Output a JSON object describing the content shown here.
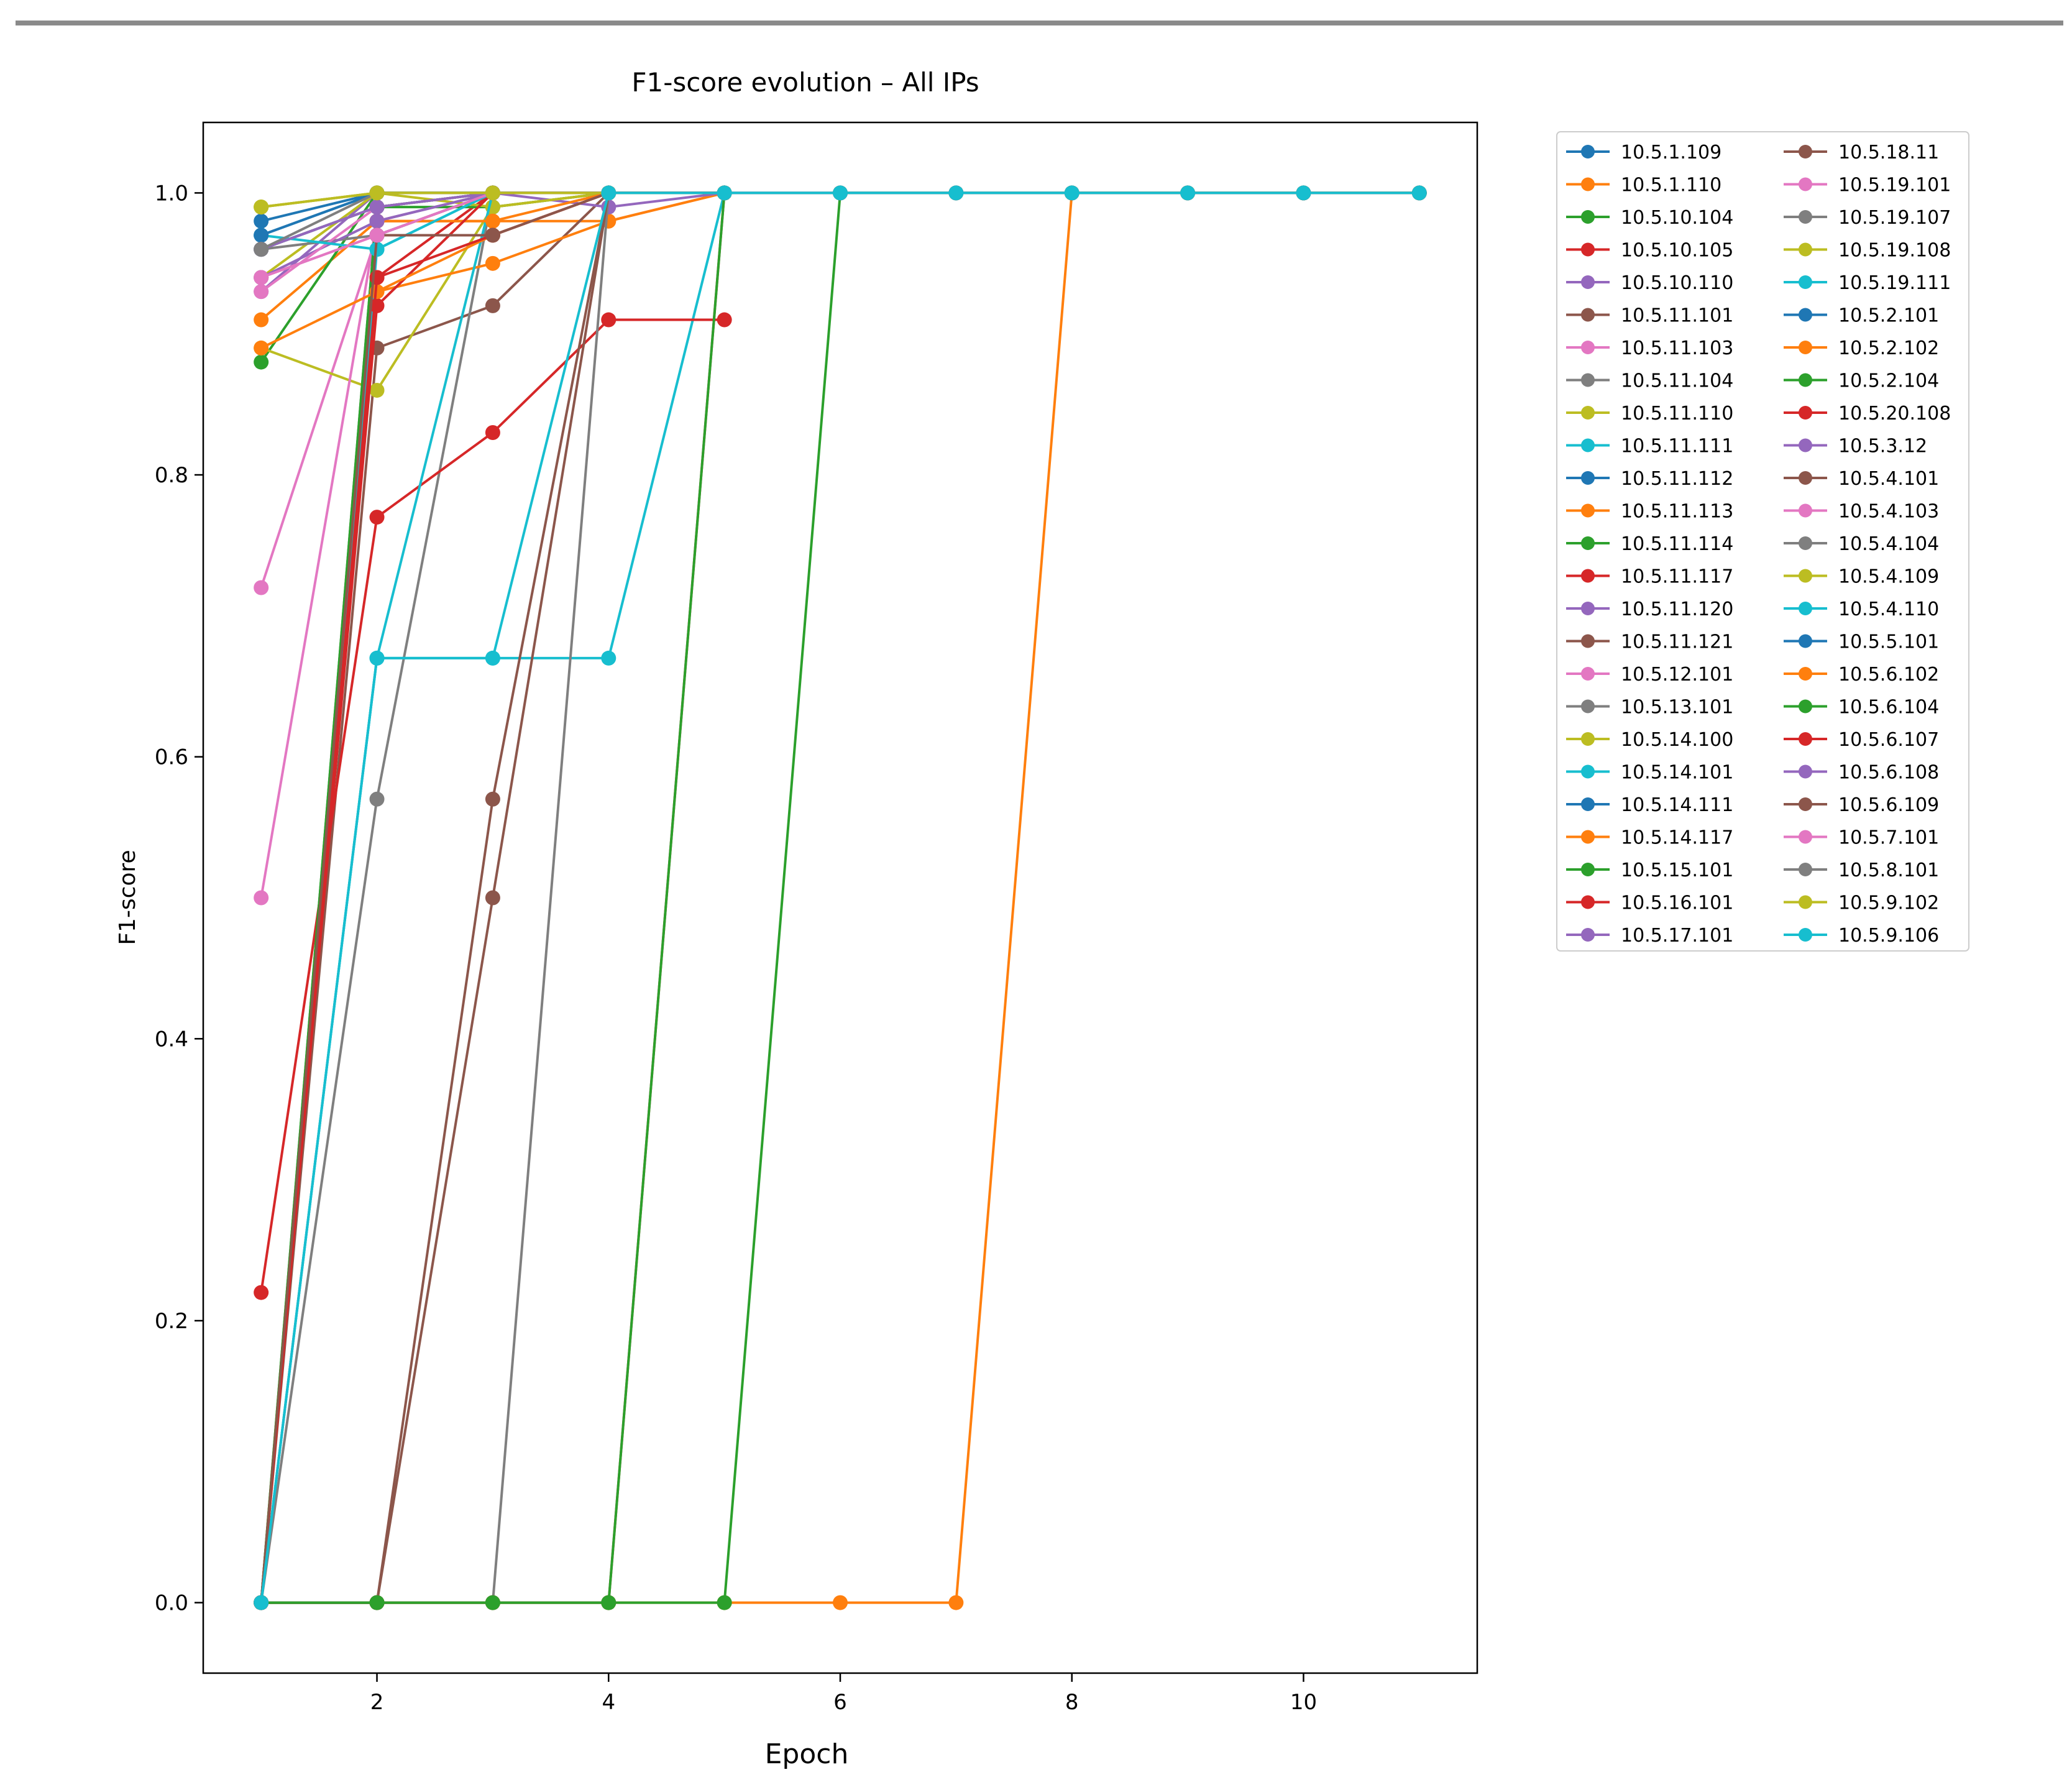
{
  "chart_data": {
    "type": "line",
    "title": "F1-score evolution – All IPs",
    "xlabel": "Epoch",
    "ylabel": "F1-score",
    "xlim": [
      0.5,
      11.5
    ],
    "ylim": [
      -0.05,
      1.05
    ],
    "xticks": [
      2,
      4,
      6,
      8,
      10
    ],
    "yticks": [
      0.0,
      0.2,
      0.4,
      0.6,
      0.8,
      1.0
    ],
    "ytick_labels": [
      "0.0",
      "0.2",
      "0.4",
      "0.6",
      "0.8",
      "1.0"
    ],
    "grid": false,
    "legend_position": "outside-right",
    "series": [
      {
        "name": "10.5.1.109",
        "color": "#1f77b4",
        "x": [
          1,
          2,
          3,
          4,
          5,
          6,
          7,
          8,
          9,
          10,
          11
        ],
        "y": [
          0.96,
          0.99,
          1,
          1,
          1,
          1,
          1,
          1,
          1,
          1,
          1
        ]
      },
      {
        "name": "10.5.1.110",
        "color": "#ff7f0e",
        "x": [
          1,
          2,
          3,
          4,
          5
        ],
        "y": [
          0.91,
          0.98,
          0.98,
          0.98,
          1
        ]
      },
      {
        "name": "10.5.10.104",
        "color": "#2ca02c",
        "x": [
          1,
          2,
          3,
          4,
          5
        ],
        "y": [
          0.88,
          1,
          1,
          1,
          1
        ]
      },
      {
        "name": "10.5.10.105",
        "color": "#d62728",
        "x": [
          1,
          2,
          3,
          4,
          5
        ],
        "y": [
          0,
          0.94,
          1,
          1,
          1
        ]
      },
      {
        "name": "10.5.10.110",
        "color": "#9467bd",
        "x": [
          1,
          2,
          3,
          4,
          5
        ],
        "y": [
          0.93,
          1,
          1,
          1,
          1
        ]
      },
      {
        "name": "10.5.11.101",
        "color": "#8c564b",
        "x": [
          1,
          2,
          3,
          4,
          5
        ],
        "y": [
          0,
          0.89,
          0.92,
          1,
          1
        ]
      },
      {
        "name": "10.5.11.103",
        "color": "#e377c2",
        "x": [
          1,
          2,
          3,
          4,
          5
        ],
        "y": [
          0.72,
          0.97,
          1,
          1,
          1
        ]
      },
      {
        "name": "10.5.11.104",
        "color": "#7f7f7f",
        "x": [
          1,
          2,
          3,
          4,
          5
        ],
        "y": [
          0,
          0.57,
          1,
          1,
          1
        ]
      },
      {
        "name": "10.5.11.110",
        "color": "#bcbd22",
        "x": [
          1,
          2,
          3,
          4,
          5
        ],
        "y": [
          0.89,
          0.86,
          0.99,
          1,
          1
        ]
      },
      {
        "name": "10.5.11.111",
        "color": "#17becf",
        "x": [
          1,
          2,
          3,
          4,
          5
        ],
        "y": [
          0,
          0.67,
          0.67,
          0.67,
          1
        ]
      },
      {
        "name": "10.5.11.112",
        "color": "#1f77b4",
        "x": [
          1,
          2,
          3,
          4,
          5
        ],
        "y": [
          0.97,
          1,
          1,
          1,
          1
        ]
      },
      {
        "name": "10.5.11.113",
        "color": "#ff7f0e",
        "x": [
          1,
          2,
          3,
          4,
          5
        ],
        "y": [
          0,
          0.93,
          0.95,
          0.98,
          1
        ]
      },
      {
        "name": "10.5.11.114",
        "color": "#2ca02c",
        "x": [
          1,
          2,
          3,
          4,
          5
        ],
        "y": [
          0,
          0.99,
          0.99,
          1,
          1
        ]
      },
      {
        "name": "10.5.11.117",
        "color": "#d62728",
        "x": [
          1,
          2,
          3,
          4,
          5
        ],
        "y": [
          0.22,
          0.77,
          0.83,
          0.91,
          0.91
        ]
      },
      {
        "name": "10.5.11.120",
        "color": "#9467bd",
        "x": [
          1,
          2,
          3,
          4,
          5
        ],
        "y": [
          0,
          0.97,
          1,
          0.99,
          1
        ]
      },
      {
        "name": "10.5.11.121",
        "color": "#8c564b",
        "x": [
          1,
          2,
          3,
          4,
          5
        ],
        "y": [
          0,
          0.97,
          0.97,
          1,
          1
        ]
      },
      {
        "name": "10.5.12.101",
        "color": "#e377c2",
        "x": [
          1,
          2,
          3,
          4,
          5
        ],
        "y": [
          0.5,
          0.98,
          1,
          1,
          1
        ]
      },
      {
        "name": "10.5.13.101",
        "color": "#7f7f7f",
        "x": [
          1,
          2,
          3,
          4,
          5
        ],
        "y": [
          0,
          0,
          0,
          1,
          1
        ]
      },
      {
        "name": "10.5.14.100",
        "color": "#bcbd22",
        "x": [
          1,
          2,
          3,
          4,
          5
        ],
        "y": [
          0.94,
          1,
          1,
          1,
          1
        ]
      },
      {
        "name": "10.5.14.101",
        "color": "#17becf",
        "x": [
          1,
          2,
          3,
          4,
          5
        ],
        "y": [
          0,
          0.96,
          1,
          1,
          1
        ]
      },
      {
        "name": "10.5.14.111",
        "color": "#1f77b4",
        "x": [
          1,
          2,
          3,
          4,
          5
        ],
        "y": [
          0.98,
          1,
          1,
          1,
          1
        ]
      },
      {
        "name": "10.5.14.117",
        "color": "#ff7f0e",
        "x": [
          1,
          2,
          3,
          4,
          5,
          6,
          7,
          8,
          9,
          10,
          11
        ],
        "y": [
          0,
          0,
          0,
          0,
          0,
          0,
          0,
          1,
          1,
          1,
          1
        ]
      },
      {
        "name": "10.5.15.101",
        "color": "#2ca02c",
        "x": [
          1,
          2,
          3,
          4,
          5,
          6,
          7,
          8,
          9,
          10,
          11
        ],
        "y": [
          0,
          0,
          0,
          0,
          0,
          1,
          1,
          1,
          1,
          1,
          1
        ]
      },
      {
        "name": "10.5.16.101",
        "color": "#d62728",
        "x": [
          1,
          2,
          3,
          4,
          5,
          6,
          7,
          8,
          9,
          10,
          11
        ],
        "y": [
          0,
          0,
          0,
          0,
          1,
          1,
          1,
          1,
          1,
          1,
          1
        ]
      },
      {
        "name": "10.5.17.101",
        "color": "#9467bd",
        "x": [
          1,
          2,
          3,
          4,
          5
        ],
        "y": [
          0,
          0.98,
          1,
          1,
          1
        ]
      },
      {
        "name": "10.5.18.11",
        "color": "#8c564b",
        "x": [
          1,
          2,
          3,
          4,
          5
        ],
        "y": [
          0,
          0,
          0.57,
          1,
          1
        ]
      },
      {
        "name": "10.5.19.101",
        "color": "#e377c2",
        "x": [
          1,
          2,
          3,
          4,
          5
        ],
        "y": [
          0.94,
          0.97,
          1,
          1,
          1
        ]
      },
      {
        "name": "10.5.19.107",
        "color": "#7f7f7f",
        "x": [
          1,
          2,
          3,
          4,
          5
        ],
        "y": [
          0.96,
          0.97,
          1,
          1,
          1
        ]
      },
      {
        "name": "10.5.19.108",
        "color": "#bcbd22",
        "x": [
          1,
          2,
          3,
          4,
          5
        ],
        "y": [
          0.99,
          1,
          0.99,
          1,
          1
        ]
      },
      {
        "name": "10.5.19.111",
        "color": "#17becf",
        "x": [
          1,
          2,
          3,
          4,
          5
        ],
        "y": [
          0,
          0.67,
          1,
          1,
          1
        ]
      },
      {
        "name": "10.5.2.101",
        "color": "#1f77b4",
        "x": [
          1,
          2,
          3,
          4,
          5
        ],
        "y": [
          0.96,
          0.99,
          1,
          1,
          1
        ]
      },
      {
        "name": "10.5.2.102",
        "color": "#ff7f0e",
        "x": [
          1,
          2,
          3,
          4,
          5
        ],
        "y": [
          0,
          0.98,
          0.98,
          1,
          1
        ]
      },
      {
        "name": "10.5.2.104",
        "color": "#2ca02c",
        "x": [
          1,
          2,
          3,
          4,
          5
        ],
        "y": [
          0,
          0.99,
          1,
          1,
          1
        ]
      },
      {
        "name": "10.5.20.108",
        "color": "#d62728",
        "x": [
          1,
          2,
          3,
          4,
          5
        ],
        "y": [
          0,
          0.92,
          1,
          1,
          1
        ]
      },
      {
        "name": "10.5.3.12",
        "color": "#9467bd",
        "x": [
          1,
          2,
          3,
          4,
          5
        ],
        "y": [
          0.94,
          0.98,
          1,
          1,
          1
        ]
      },
      {
        "name": "10.5.4.101",
        "color": "#8c564b",
        "x": [
          1,
          2,
          3,
          4,
          5
        ],
        "y": [
          0,
          0,
          0.5,
          1,
          1
        ]
      },
      {
        "name": "10.5.4.103",
        "color": "#e377c2",
        "x": [
          1,
          2,
          3,
          4,
          5
        ],
        "y": [
          0.93,
          0.99,
          1,
          1,
          1
        ]
      },
      {
        "name": "10.5.4.104",
        "color": "#7f7f7f",
        "x": [
          1,
          2,
          3,
          4,
          5
        ],
        "y": [
          0.96,
          0.99,
          1,
          1,
          1
        ]
      },
      {
        "name": "10.5.4.109",
        "color": "#bcbd22",
        "x": [
          1,
          2,
          3,
          4,
          5
        ],
        "y": [
          0.99,
          1,
          1,
          1,
          1
        ]
      },
      {
        "name": "10.5.4.110",
        "color": "#17becf",
        "x": [
          1,
          2,
          3,
          4,
          5
        ],
        "y": [
          0.97,
          0.96,
          1,
          1,
          1
        ]
      },
      {
        "name": "10.5.5.101",
        "color": "#1f77b4",
        "x": [
          1,
          2,
          3,
          4,
          5
        ],
        "y": [
          0.97,
          1,
          1,
          1,
          1
        ]
      },
      {
        "name": "10.5.6.102",
        "color": "#ff7f0e",
        "x": [
          1,
          2,
          3,
          4,
          5
        ],
        "y": [
          0.89,
          0.93,
          0.97,
          1,
          1
        ]
      },
      {
        "name": "10.5.6.104",
        "color": "#2ca02c",
        "x": [
          1,
          2,
          3,
          4,
          5
        ],
        "y": [
          0,
          0,
          0,
          0,
          1
        ]
      },
      {
        "name": "10.5.6.107",
        "color": "#d62728",
        "x": [
          1,
          2,
          3,
          4,
          5
        ],
        "y": [
          0,
          0.94,
          0.97,
          1,
          1
        ]
      },
      {
        "name": "10.5.6.108",
        "color": "#9467bd",
        "x": [
          1,
          2,
          3,
          4,
          5
        ],
        "y": [
          0.96,
          0.99,
          1,
          1,
          1
        ]
      },
      {
        "name": "10.5.6.109",
        "color": "#8c564b",
        "x": [
          1,
          2,
          3,
          4,
          5
        ],
        "y": [
          0,
          0.97,
          0.97,
          1,
          1
        ]
      },
      {
        "name": "10.5.7.101",
        "color": "#e377c2",
        "x": [
          1,
          2,
          3,
          4,
          5
        ],
        "y": [
          0.94,
          0.97,
          1,
          1,
          1
        ]
      },
      {
        "name": "10.5.8.101",
        "color": "#7f7f7f",
        "x": [
          1,
          2,
          3,
          4,
          5
        ],
        "y": [
          0.96,
          1,
          1,
          1,
          1
        ]
      },
      {
        "name": "10.5.9.102",
        "color": "#bcbd22",
        "x": [
          1,
          2,
          3,
          4,
          5
        ],
        "y": [
          0.99,
          1,
          1,
          1,
          1
        ]
      },
      {
        "name": "10.5.9.106",
        "color": "#17becf",
        "x": [
          1,
          2,
          3,
          4,
          5,
          6,
          7,
          8,
          9,
          10,
          11
        ],
        "y": [
          0,
          0.67,
          0.67,
          1,
          1,
          1,
          1,
          1,
          1,
          1,
          1
        ]
      }
    ]
  }
}
